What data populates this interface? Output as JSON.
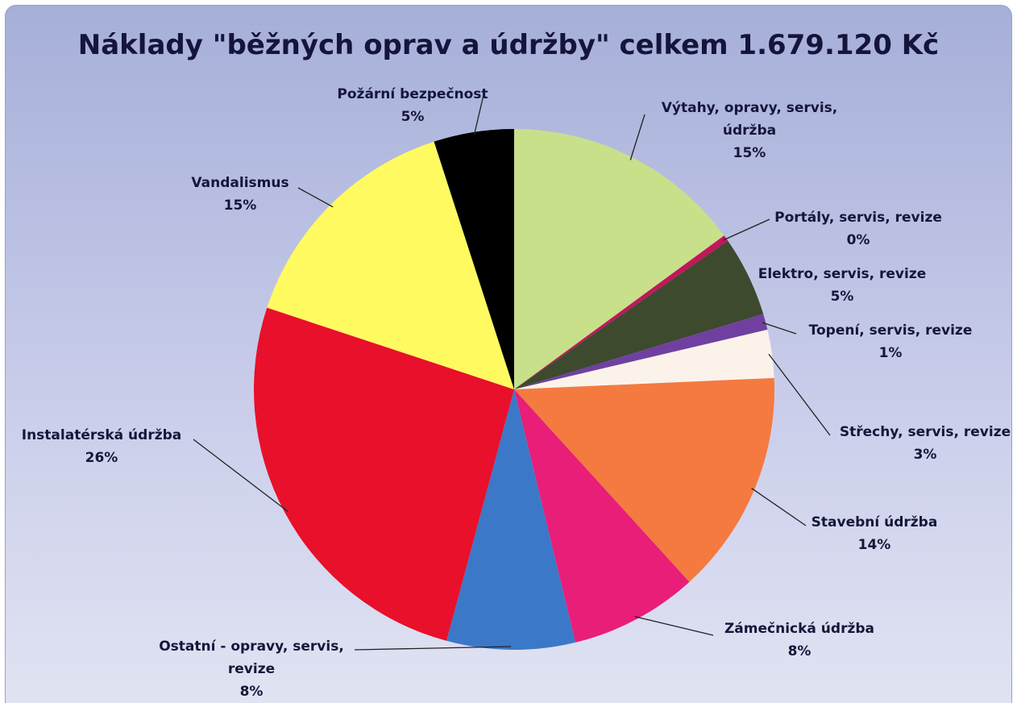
{
  "chart_data": {
    "type": "pie",
    "title": "Náklady \"běžných oprav a údržby\" celkem 1.679.120 Kč",
    "categories": [
      "Výtahy, opravy, servis, údržba",
      "Portály, servis, revize",
      "Elektro, servis, revize",
      "Topení, servis, revize",
      "Střechy, servis, revize",
      "Stavební údržba",
      "Zámečnická údržba",
      "Ostatní - opravy, servis, revize",
      "Instalatérská údržba",
      "Vandalismus",
      "Požární bezpečnost"
    ],
    "values": [
      15,
      0.4,
      5,
      1,
      3,
      14,
      8,
      8,
      26,
      15,
      5
    ],
    "value_labels": [
      "15%",
      "0%",
      "5%",
      "1%",
      "3%",
      "14%",
      "8%",
      "8%",
      "26%",
      "15%",
      "5%"
    ],
    "colors": [
      "#c8e08a",
      "#c0185a",
      "#3d4a2e",
      "#7040a0",
      "#fbf3ea",
      "#f47a40",
      "#e81e78",
      "#3c78c8",
      "#e8102a",
      "#fffa60",
      "#000000"
    ]
  }
}
